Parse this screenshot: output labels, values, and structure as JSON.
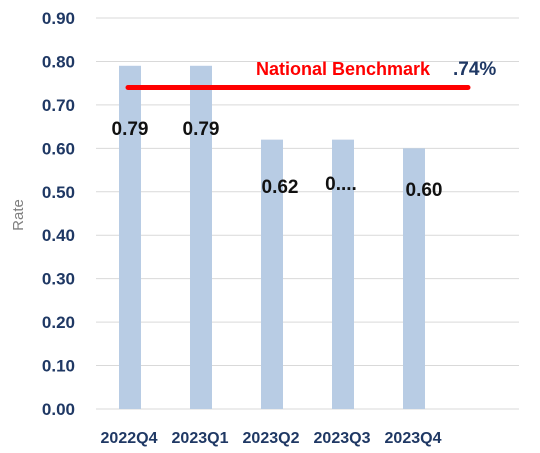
{
  "chart_data": {
    "type": "bar",
    "categories": [
      "2022Q4",
      "2023Q1",
      "2023Q2",
      "2023Q3",
      "2023Q4"
    ],
    "values": [
      0.79,
      0.79,
      0.62,
      0.62,
      0.6
    ],
    "data_labels": [
      "0.79",
      "0.79",
      "0.62",
      "0....",
      "0.60"
    ],
    "ylabel": "Rate",
    "ylim": [
      0,
      0.9
    ],
    "yticks": [
      "0.00",
      "0.10",
      "0.20",
      "0.30",
      "0.40",
      "0.50",
      "0.60",
      "0.70",
      "0.80",
      "0.90"
    ],
    "grid": true,
    "benchmark": {
      "label": "National Benchmark",
      "value_label": ".74%",
      "value": 0.74
    },
    "colors": {
      "bar": "#b8cce4",
      "benchmark_line": "#ff0000",
      "benchmark_text": "#ff0000",
      "benchmark_value_text": "#1f3864",
      "grid": "#d9d9d9",
      "tick_text": "#1f3864"
    }
  }
}
